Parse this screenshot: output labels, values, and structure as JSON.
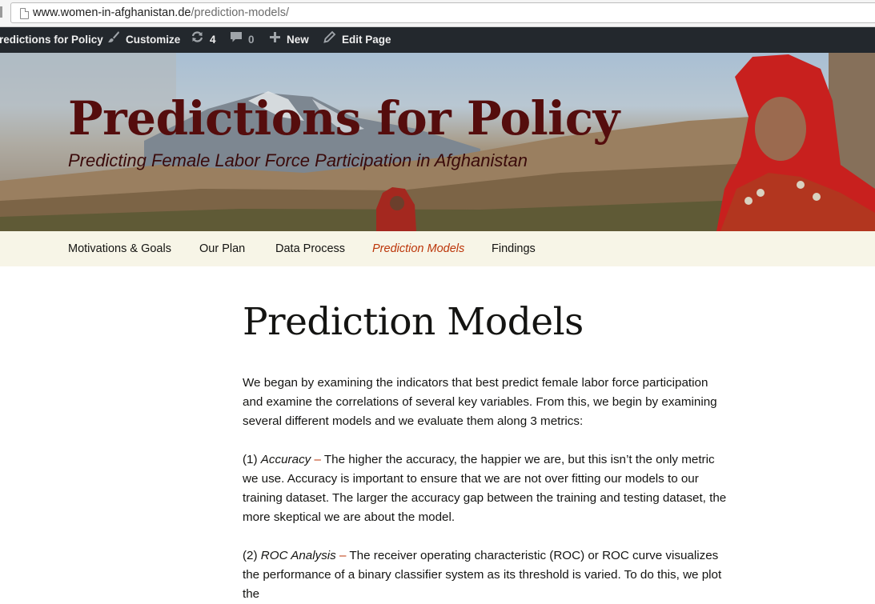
{
  "browser": {
    "url_host": "www.women-in-afghanistan.de",
    "url_path": "/prediction-models/"
  },
  "admin_bar": {
    "site_name": "redictions for Policy",
    "customize": "Customize",
    "updates_count": "4",
    "comments_count": "0",
    "new_label": "New",
    "edit_label": "Edit Page"
  },
  "header": {
    "title": "Predictions for Policy",
    "description": "Predicting Female Labor Force Participation in Afghanistan"
  },
  "nav": {
    "items": [
      {
        "label": "Motivations & Goals"
      },
      {
        "label": "Our Plan"
      },
      {
        "label": "Data Process"
      },
      {
        "label": "Prediction Models"
      },
      {
        "label": "Findings"
      }
    ]
  },
  "main": {
    "page_title": "Prediction Models",
    "intro": "We began by examining the indicators that best predict female labor force participation and examine the correlations of several key variables.  From this, we begin by examining several different models and we evaluate them along 3 metrics:",
    "metric1_num": "(1)",
    "metric1_name": "Accuracy",
    "metric1_dash": "–",
    "metric1_text": "The higher the accuracy, the happier we are, but this isn’t the only metric we use.  Accuracy is important to ensure that we are not over fitting our models to our training dataset. The larger the accuracy gap between the training and testing dataset, the more skeptical we are about the model.",
    "metric2_num": "(2)",
    "metric2_name": "ROC Analysis",
    "metric2_dash": "–",
    "metric2_text": "The receiver operating characteristic (ROC) or ROC curve visualizes the performance of a binary classifier system as its threshold is varied. To do this, we plot the"
  },
  "icons": {
    "updates": "refresh-icon",
    "comments": "comment-icon",
    "new": "plus-icon",
    "edit": "pencil-icon",
    "customize": "brush-icon",
    "page": "page-icon"
  },
  "colors": {
    "admin_bar": "#23282d",
    "nav_bg": "#f7f5e7",
    "accent": "#bc360a",
    "title": "#550d0d"
  }
}
